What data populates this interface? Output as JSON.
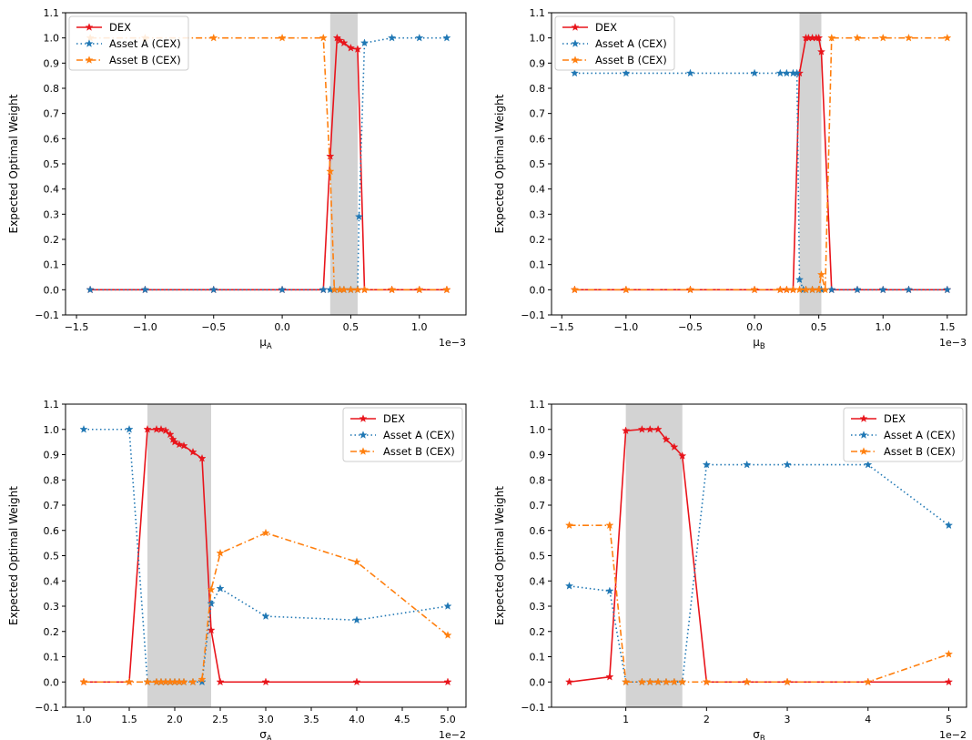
{
  "colors": {
    "dex": "#e8141b",
    "asset_a": "#1f77b4",
    "asset_b": "#ff7f0e",
    "shade": "#d3d3d3"
  },
  "chart_data": [
    {
      "type": "line",
      "xlabel": "μ_A",
      "xlabel_base": "μ",
      "xlabel_sub": "A",
      "ylabel": "Expected Optimal Weight",
      "x_offset_label": "1e−3",
      "xlim": [
        -1.58,
        1.34
      ],
      "ylim": [
        -0.1,
        1.1
      ],
      "xticks": [
        -1.5,
        -1.0,
        -0.5,
        0.0,
        0.5,
        1.0
      ],
      "xtick_labels": [
        "−1.5",
        "−1.0",
        "−0.5",
        "0.0",
        "0.5",
        "1.0"
      ],
      "yticks": [
        -0.1,
        0.0,
        0.1,
        0.2,
        0.3,
        0.4,
        0.5,
        0.6,
        0.7,
        0.8,
        0.9,
        1.0,
        1.1
      ],
      "ytick_labels": [
        "−0.1",
        "0.0",
        "0.1",
        "0.2",
        "0.3",
        "0.4",
        "0.5",
        "0.6",
        "0.7",
        "0.8",
        "0.9",
        "1.0",
        "1.1"
      ],
      "shaded_region": [
        0.35,
        0.55
      ],
      "legend_position": "upper-left",
      "series": [
        {
          "name": "DEX",
          "style": "solid",
          "x": [
            -1.4,
            -1.0,
            -0.5,
            0.0,
            0.3,
            0.35,
            0.4,
            0.42,
            0.45,
            0.5,
            0.55,
            0.6,
            0.8,
            1.0,
            1.2
          ],
          "values": [
            0,
            0,
            0,
            0,
            0,
            0.53,
            1.0,
            0.99,
            0.98,
            0.96,
            0.955,
            0.0,
            0,
            0,
            0
          ]
        },
        {
          "name": "Asset A (CEX)",
          "style": "dotted",
          "x": [
            -1.4,
            -1.0,
            -0.5,
            0.0,
            0.3,
            0.35,
            0.38,
            0.42,
            0.45,
            0.5,
            0.55,
            0.56,
            0.6,
            0.8,
            1.0,
            1.2
          ],
          "values": [
            0,
            0,
            0,
            0,
            0,
            0,
            0,
            0,
            0,
            0,
            0,
            0.29,
            0.98,
            1.0,
            1.0,
            1.0
          ]
        },
        {
          "name": "Asset B (CEX)",
          "style": "dashdot",
          "x": [
            -1.4,
            -1.0,
            -0.5,
            0.0,
            0.3,
            0.35,
            0.38,
            0.42,
            0.45,
            0.5,
            0.55,
            0.6,
            0.8,
            1.0,
            1.2
          ],
          "values": [
            1.0,
            1.0,
            1.0,
            1.0,
            1.0,
            0.47,
            0,
            0,
            0,
            0,
            0,
            0,
            0,
            0,
            0
          ]
        }
      ]
    },
    {
      "type": "line",
      "xlabel": "μ_B",
      "xlabel_base": "μ",
      "xlabel_sub": "B",
      "ylabel": "Expected Optimal Weight",
      "x_offset_label": "1e−3",
      "xlim": [
        -1.58,
        1.65
      ],
      "ylim": [
        -0.1,
        1.1
      ],
      "xticks": [
        -1.5,
        -1.0,
        -0.5,
        0.0,
        0.5,
        1.0,
        1.5
      ],
      "xtick_labels": [
        "−1.5",
        "−1.0",
        "−0.5",
        "0.0",
        "0.5",
        "1.0",
        "1.5"
      ],
      "yticks": [
        -0.1,
        0.0,
        0.1,
        0.2,
        0.3,
        0.4,
        0.5,
        0.6,
        0.7,
        0.8,
        0.9,
        1.0,
        1.1
      ],
      "ytick_labels": [
        "−0.1",
        "0.0",
        "0.1",
        "0.2",
        "0.3",
        "0.4",
        "0.5",
        "0.6",
        "0.7",
        "0.8",
        "0.9",
        "1.0",
        "1.1"
      ],
      "shaded_region": [
        0.35,
        0.52
      ],
      "legend_position": "upper-left",
      "series": [
        {
          "name": "DEX",
          "style": "solid",
          "x": [
            -1.4,
            -1.0,
            -0.5,
            0.0,
            0.2,
            0.25,
            0.3,
            0.35,
            0.4,
            0.42,
            0.45,
            0.48,
            0.5,
            0.52,
            0.6,
            0.8,
            1.0,
            1.2,
            1.5
          ],
          "values": [
            0,
            0,
            0,
            0,
            0,
            0,
            0,
            0.86,
            1.0,
            1.0,
            1.0,
            1.0,
            1.0,
            0.945,
            0,
            0,
            0,
            0,
            0
          ]
        },
        {
          "name": "Asset A (CEX)",
          "style": "dotted",
          "x": [
            -1.4,
            -1.0,
            -0.5,
            0.0,
            0.2,
            0.25,
            0.3,
            0.33,
            0.35,
            0.38,
            0.4,
            0.45,
            0.5,
            0.52,
            0.6,
            0.8,
            1.0,
            1.2,
            1.5
          ],
          "values": [
            0.86,
            0.86,
            0.86,
            0.86,
            0.86,
            0.86,
            0.86,
            0.86,
            0.04,
            0,
            0,
            0,
            0,
            0,
            0,
            0,
            0,
            0,
            0
          ]
        },
        {
          "name": "Asset B (CEX)",
          "style": "dashdot",
          "x": [
            -1.4,
            -1.0,
            -0.5,
            0.0,
            0.2,
            0.25,
            0.3,
            0.35,
            0.4,
            0.45,
            0.5,
            0.52,
            0.55,
            0.6,
            0.8,
            1.0,
            1.2,
            1.5
          ],
          "values": [
            0,
            0,
            0,
            0,
            0,
            0,
            0,
            0,
            0,
            0,
            0,
            0.06,
            0.0,
            1.0,
            1.0,
            1.0,
            1.0,
            1.0
          ]
        }
      ]
    },
    {
      "type": "line",
      "xlabel": "σ_A",
      "xlabel_base": "σ",
      "xlabel_sub": "A",
      "ylabel": "Expected Optimal Weight",
      "x_offset_label": "1e−2",
      "xlim": [
        0.8,
        5.2
      ],
      "ylim": [
        -0.1,
        1.1
      ],
      "xticks": [
        1.0,
        1.5,
        2.0,
        2.5,
        3.0,
        3.5,
        4.0,
        4.5,
        5.0
      ],
      "xtick_labels": [
        "1.0",
        "1.5",
        "2.0",
        "2.5",
        "3.0",
        "3.5",
        "4.0",
        "4.5",
        "5.0"
      ],
      "yticks": [
        -0.1,
        0.0,
        0.1,
        0.2,
        0.3,
        0.4,
        0.5,
        0.6,
        0.7,
        0.8,
        0.9,
        1.0,
        1.1
      ],
      "ytick_labels": [
        "−0.1",
        "0.0",
        "0.1",
        "0.2",
        "0.3",
        "0.4",
        "0.5",
        "0.6",
        "0.7",
        "0.8",
        "0.9",
        "1.0",
        "1.1"
      ],
      "shaded_region": [
        1.7,
        2.4
      ],
      "legend_position": "upper-right",
      "series": [
        {
          "name": "DEX",
          "style": "solid",
          "x": [
            1.0,
            1.5,
            1.7,
            1.8,
            1.85,
            1.9,
            1.95,
            1.98,
            2.0,
            2.05,
            2.1,
            2.2,
            2.3,
            2.4,
            2.5,
            3.0,
            4.0,
            5.0
          ],
          "values": [
            0,
            0,
            1.0,
            1.0,
            1.0,
            0.995,
            0.98,
            0.96,
            0.95,
            0.94,
            0.935,
            0.91,
            0.885,
            0.205,
            0,
            0,
            0,
            0
          ]
        },
        {
          "name": "Asset A (CEX)",
          "style": "dotted",
          "x": [
            1.0,
            1.5,
            1.7,
            1.8,
            1.85,
            1.9,
            1.95,
            2.0,
            2.05,
            2.1,
            2.2,
            2.3,
            2.4,
            2.5,
            3.0,
            4.0,
            5.0
          ],
          "values": [
            1.0,
            1.0,
            0,
            0,
            0,
            0,
            0,
            0,
            0,
            0,
            0,
            0,
            0.31,
            0.37,
            0.26,
            0.245,
            0.3
          ]
        },
        {
          "name": "Asset B (CEX)",
          "style": "dashdot",
          "x": [
            1.0,
            1.5,
            1.7,
            1.8,
            1.85,
            1.9,
            1.95,
            2.0,
            2.05,
            2.1,
            2.2,
            2.3,
            2.4,
            2.5,
            3.0,
            4.0,
            5.0
          ],
          "values": [
            0,
            0,
            0,
            0,
            0,
            0,
            0,
            0,
            0,
            0,
            0,
            0.01,
            0.365,
            0.51,
            0.59,
            0.475,
            0.185
          ]
        }
      ]
    },
    {
      "type": "line",
      "xlabel": "σ_B",
      "xlabel_base": "σ",
      "xlabel_sub": "B",
      "ylabel": "Expected Optimal Weight",
      "x_offset_label": "1e−2",
      "xlim": [
        0.08,
        5.22
      ],
      "ylim": [
        -0.1,
        1.1
      ],
      "xticks": [
        1,
        2,
        3,
        4,
        5
      ],
      "xtick_labels": [
        "1",
        "2",
        "3",
        "4",
        "5"
      ],
      "yticks": [
        -0.1,
        0.0,
        0.1,
        0.2,
        0.3,
        0.4,
        0.5,
        0.6,
        0.7,
        0.8,
        0.9,
        1.0,
        1.1
      ],
      "ytick_labels": [
        "−0.1",
        "0.0",
        "0.1",
        "0.2",
        "0.3",
        "0.4",
        "0.5",
        "0.6",
        "0.7",
        "0.8",
        "0.9",
        "1.0",
        "1.1"
      ],
      "shaded_region": [
        1.0,
        1.7
      ],
      "legend_position": "upper-right",
      "series": [
        {
          "name": "DEX",
          "style": "solid",
          "x": [
            0.3,
            0.8,
            1.0,
            1.2,
            1.3,
            1.4,
            1.5,
            1.6,
            1.7,
            2.0,
            2.5,
            3.0,
            4.0,
            5.0
          ],
          "values": [
            0,
            0.02,
            0.995,
            1.0,
            1.0,
            1.0,
            0.96,
            0.93,
            0.895,
            0,
            0,
            0,
            0,
            0
          ]
        },
        {
          "name": "Asset A (CEX)",
          "style": "dotted",
          "x": [
            0.3,
            0.8,
            1.0,
            1.2,
            1.3,
            1.4,
            1.5,
            1.6,
            1.7,
            2.0,
            2.5,
            3.0,
            4.0,
            5.0
          ],
          "values": [
            0.38,
            0.36,
            0,
            0,
            0,
            0,
            0,
            0,
            0,
            0.86,
            0.86,
            0.86,
            0.86,
            0.62
          ]
        },
        {
          "name": "Asset B (CEX)",
          "style": "dashdot",
          "x": [
            0.3,
            0.8,
            1.0,
            1.2,
            1.3,
            1.4,
            1.5,
            1.6,
            1.7,
            2.0,
            2.5,
            3.0,
            4.0,
            5.0
          ],
          "values": [
            0.62,
            0.62,
            0,
            0,
            0,
            0,
            0,
            0,
            0,
            0,
            0,
            0,
            0,
            0.11
          ]
        }
      ]
    }
  ]
}
